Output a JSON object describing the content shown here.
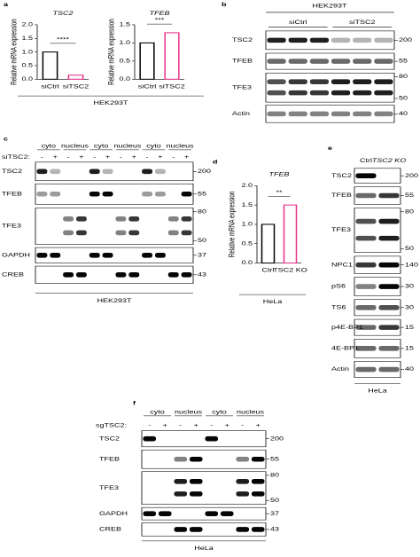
{
  "chart_data": [
    {
      "type": "bar",
      "title": "TSC2",
      "y_label": "Relative mRNA expression",
      "categories": [
        "siCtrl",
        "siTSC2"
      ],
      "values": [
        1.0,
        0.15
      ],
      "colors": [
        "#000000",
        "#e8318a"
      ],
      "ylim": [
        0,
        2
      ],
      "yticks": [
        {
          "value": 0,
          "label": "0.0"
        },
        {
          "value": 0.5,
          "label": "0.5"
        },
        {
          "value": 1,
          "label": "1.0"
        },
        {
          "value": 1.5,
          "label": "1.5"
        },
        {
          "value": 2,
          "label": "2.0"
        }
      ],
      "annotation": "****"
    },
    {
      "type": "bar",
      "title": "TFEB",
      "y_label": "Relative mRNA expression",
      "categories": [
        "siCtrl",
        "siTSC2"
      ],
      "values": [
        1.0,
        1.28
      ],
      "colors": [
        "#000000",
        "#e8318a"
      ],
      "ylim": [
        0,
        1.5
      ],
      "yticks": [
        {
          "value": 0,
          "label": "0.0"
        },
        {
          "value": 0.5,
          "label": "0.5"
        },
        {
          "value": 1,
          "label": "1.0"
        },
        {
          "value": 1.5,
          "label": "1.5"
        }
      ],
      "annotation": "***"
    },
    {
      "type": "bar",
      "title": "TFEB",
      "y_label": "Relative mRNA expression",
      "categories": [
        "Ctrl",
        "TSC2 KO"
      ],
      "values": [
        1.0,
        1.5
      ],
      "colors": [
        "#000000",
        "#e8318a"
      ],
      "ylim": [
        0,
        2
      ],
      "yticks": [
        {
          "value": 0,
          "label": "0.0"
        },
        {
          "value": 0.5,
          "label": "0.5"
        },
        {
          "value": 1,
          "label": "1.0"
        },
        {
          "value": 1.5,
          "label": "1.5"
        },
        {
          "value": 2,
          "label": "2.0"
        }
      ],
      "annotation": "**"
    }
  ],
  "panels": {
    "a": {
      "label": "a",
      "cell_line": "HEK293T"
    },
    "b": {
      "label": "b",
      "cell_line": "HEK293T",
      "groups": [
        "siCtrl",
        "siTSC2"
      ],
      "rows": [
        {
          "name": "TSC2",
          "mw": [
            200
          ]
        },
        {
          "name": "TFEB",
          "mw": [
            55
          ]
        },
        {
          "name": "TFE3",
          "mw": [
            80,
            50
          ]
        },
        {
          "name": "Actin",
          "mw": [
            40
          ]
        }
      ]
    },
    "c": {
      "label": "c",
      "cell_line": "HEK293T",
      "headers": [
        "cyto",
        "nucleus",
        "cyto",
        "nucleus",
        "cyto",
        "nucleus"
      ],
      "treatment": "siTSC2:",
      "signs": [
        "-",
        "+",
        "-",
        "+",
        "-",
        "+",
        "-",
        "+",
        "-",
        "+",
        "-",
        "+"
      ],
      "rows": [
        {
          "name": "TSC2",
          "mw": [
            200
          ]
        },
        {
          "name": "TFEB",
          "mw": [
            55
          ]
        },
        {
          "name": "TFE3",
          "mw": [
            80,
            50
          ]
        },
        {
          "name": "GAPDH",
          "mw": [
            37
          ]
        },
        {
          "name": "CREB",
          "mw": [
            43
          ]
        }
      ]
    },
    "d": {
      "label": "d",
      "cell_line": "HeLa"
    },
    "e": {
      "label": "e",
      "cell_line": "HeLa",
      "lanes": [
        "Ctrl",
        "TSC2 KO"
      ],
      "rows": [
        {
          "name": "TSC2",
          "mw": [
            200
          ]
        },
        {
          "name": "TFEB",
          "mw": [
            55
          ]
        },
        {
          "name": "TFE3",
          "mw": [
            80,
            50
          ]
        },
        {
          "name": "NPC1",
          "mw": [
            140
          ]
        },
        {
          "name": "pS6",
          "mw": [
            30
          ]
        },
        {
          "name": "TS6",
          "mw": [
            30
          ]
        },
        {
          "name": "p4E-BP1",
          "mw": [
            15
          ]
        },
        {
          "name": "4E-BP1",
          "mw": [
            15
          ]
        },
        {
          "name": "Actin",
          "mw": [
            40
          ]
        }
      ]
    },
    "f": {
      "label": "f",
      "cell_line": "HeLa",
      "headers": [
        "cyto",
        "nucleus",
        "cyto",
        "nucleus"
      ],
      "treatment": "sgTSC2:",
      "signs": [
        "-",
        "+",
        "-",
        "+",
        "-",
        "+",
        "-",
        "+"
      ],
      "rows": [
        {
          "name": "TSC2",
          "mw": [
            200
          ]
        },
        {
          "name": "TFEB",
          "mw": [
            55
          ]
        },
        {
          "name": "TFE3",
          "mw": [
            80,
            50
          ]
        },
        {
          "name": "GAPDH",
          "mw": [
            37
          ]
        },
        {
          "name": "CREB",
          "mw": [
            43
          ]
        }
      ]
    }
  }
}
